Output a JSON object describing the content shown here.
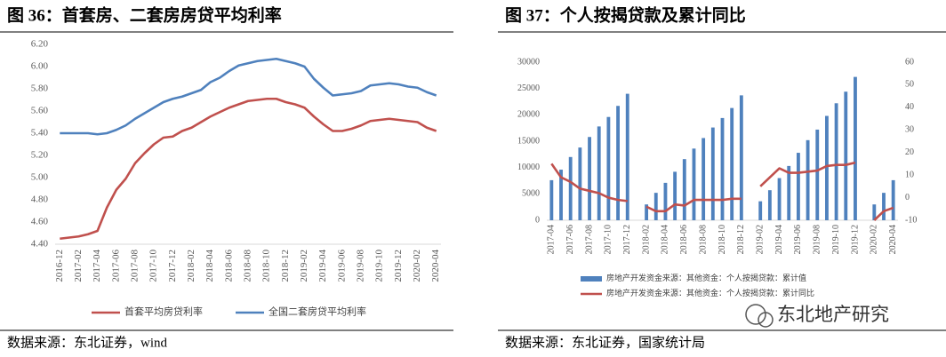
{
  "chart_data": [
    {
      "type": "line",
      "title": "图 36：首套房、二套房房贷平均利率",
      "source": "数据来源：东北证券，wind",
      "categories": [
        "2016-12",
        null,
        "2017-02",
        null,
        "2017-04",
        null,
        "2017-06",
        null,
        "2017-08",
        null,
        "2017-10",
        null,
        "2017-12",
        null,
        "2018-02",
        null,
        "2018-04",
        null,
        "2018-06",
        null,
        "2018-08",
        null,
        "2018-10",
        null,
        "2018-12",
        null,
        "2019-02",
        null,
        "2019-04",
        null,
        "2019-06",
        null,
        "2019-08",
        null,
        "2019-10",
        null,
        "2019-12",
        null,
        "2020-02",
        null,
        "2020-04"
      ],
      "series": [
        {
          "name": "首套平均房贷利率",
          "color": "#c0504d",
          "values": [
            4.45,
            4.46,
            4.47,
            4.49,
            4.52,
            4.73,
            4.89,
            4.99,
            5.13,
            5.22,
            5.3,
            5.36,
            5.37,
            5.42,
            5.45,
            5.5,
            5.55,
            5.59,
            5.63,
            5.66,
            5.69,
            5.7,
            5.71,
            5.71,
            5.68,
            5.66,
            5.63,
            5.55,
            5.48,
            5.42,
            5.42,
            5.44,
            5.47,
            5.51,
            5.52,
            5.53,
            5.52,
            5.51,
            5.5,
            5.45,
            5.42
          ]
        },
        {
          "name": "全国二套房贷平均利率",
          "color": "#4f81bd",
          "values": [
            5.4,
            5.4,
            5.4,
            5.4,
            5.39,
            5.4,
            5.43,
            5.47,
            5.53,
            5.58,
            5.63,
            5.68,
            5.71,
            5.73,
            5.76,
            5.79,
            5.86,
            5.9,
            5.96,
            6.01,
            6.03,
            6.05,
            6.06,
            6.07,
            6.05,
            6.03,
            6.0,
            5.89,
            5.81,
            5.74,
            5.75,
            5.76,
            5.78,
            5.83,
            5.84,
            5.85,
            5.84,
            5.82,
            5.81,
            5.77,
            5.74
          ]
        }
      ],
      "ylim": [
        4.4,
        6.2
      ],
      "yticks": [
        {
          "value": 4.4,
          "label": "4.40"
        },
        {
          "value": 4.6,
          "label": "4.60"
        },
        {
          "value": 4.8,
          "label": "4.80"
        },
        {
          "value": 5.0,
          "label": "5.00"
        },
        {
          "value": 5.2,
          "label": "5.20"
        },
        {
          "value": 5.4,
          "label": "5.40"
        },
        {
          "value": 5.6,
          "label": "5.60"
        },
        {
          "value": 5.8,
          "label": "5.80"
        },
        {
          "value": 6.0,
          "label": "6.00"
        },
        {
          "value": 6.2,
          "label": "6.20"
        }
      ],
      "grid": false,
      "legend": "bottom"
    },
    {
      "type": "combo",
      "title": "图 37：个人按揭贷款及累计同比",
      "source": "数据来源：东北证券，国家统计局",
      "categories": [
        "2017-04",
        null,
        "2017-06",
        null,
        "2017-08",
        null,
        "2017-10",
        null,
        "2017-12",
        null,
        "2018-02",
        null,
        "2018-04",
        null,
        "2018-06",
        null,
        "2018-08",
        null,
        "2018-10",
        null,
        "2018-12",
        null,
        "2019-02",
        null,
        "2019-04",
        null,
        "2019-06",
        null,
        "2019-08",
        null,
        "2019-10",
        null,
        "2019-12",
        null,
        "2020-02",
        null,
        "2020-04"
      ],
      "series": [
        {
          "name": "房地产开发资金来源：其他资金：个人按揭贷款：累计值",
          "type": "bar",
          "color": "#4f81bd",
          "axis": "y",
          "values": [
            7600,
            9600,
            12000,
            13800,
            15800,
            17800,
            19600,
            21700,
            24000,
            null,
            3000,
            5200,
            7100,
            9200,
            11600,
            13600,
            15600,
            17600,
            19400,
            21300,
            23700,
            null,
            3600,
            5700,
            8000,
            10300,
            12800,
            15200,
            17200,
            19800,
            22200,
            24400,
            27200,
            null,
            3000,
            5200,
            7600
          ]
        },
        {
          "name": "房地产开发资金来源：其他资金：个人按揭贷款：累计同比",
          "type": "line",
          "color": "#c0504d",
          "axis": "y2",
          "values": [
            15,
            9,
            7,
            4,
            3,
            2,
            0,
            -1,
            -1.5,
            null,
            -4,
            -6,
            -6,
            -3,
            -3.5,
            -1,
            -1,
            -1,
            -1,
            -0.5,
            -0.5,
            null,
            5,
            9,
            13,
            11,
            11,
            11.5,
            12,
            14,
            14.5,
            14.5,
            15.5,
            null,
            -10,
            -6,
            -4.5
          ]
        }
      ],
      "ylim": [
        0,
        30000
      ],
      "yticks": [
        0,
        5000,
        10000,
        15000,
        20000,
        25000,
        30000
      ],
      "y2lim": [
        -10,
        60
      ],
      "y2ticks": [
        -10,
        0,
        10,
        20,
        30,
        40,
        50,
        60
      ],
      "grid": false,
      "legend": "bottom"
    }
  ],
  "watermark": "东北地产研究"
}
